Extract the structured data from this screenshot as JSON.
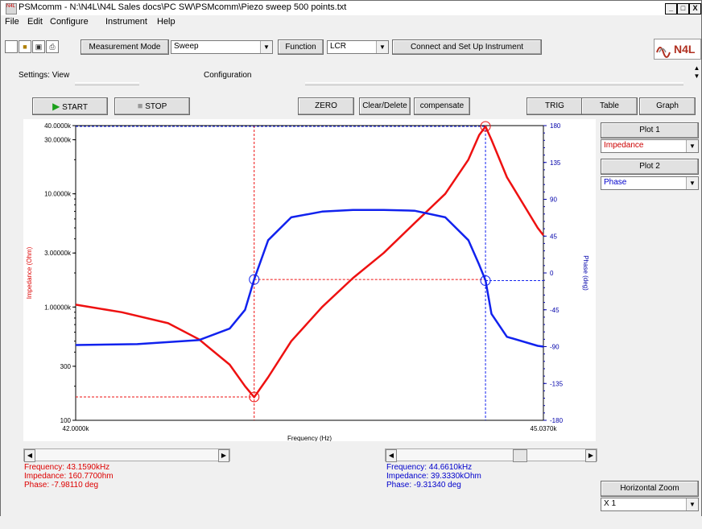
{
  "window": {
    "title": "PSMcomm - N:\\N4L\\N4L Sales docs\\PC SW\\PSMcomm\\Piezo sweep 500 points.txt",
    "icon_text": "N4L",
    "minimize": "_",
    "maximize": "□",
    "close": "X"
  },
  "menu": {
    "file": "File",
    "edit": "Edit",
    "configure": "Configure",
    "instrument": "Instrument",
    "help": "Help"
  },
  "toolbar": {
    "measurement_mode_label": "Measurement Mode",
    "measurement_mode_value": "Sweep",
    "function_label": "Function",
    "function_value": "LCR",
    "connect_label": "Connect and Set Up Instrument",
    "logo_text": "N4L"
  },
  "settings": {
    "view_label": "Settings: View",
    "configuration_label": "Configuration"
  },
  "actions": {
    "start": "START",
    "stop": "STOP",
    "zero": "ZERO",
    "clear": "Clear/Delete",
    "compensate": "compensate",
    "trig": "TRIG",
    "table": "Table",
    "graph": "Graph"
  },
  "side_panel": {
    "plot1_label": "Plot 1",
    "plot1_value": "Impedance",
    "plot2_label": "Plot 2",
    "plot2_value": "Phase",
    "zoom_label": "Horizontal Zoom",
    "zoom_value": "X 1"
  },
  "cursor_left": {
    "frequency": "Frequency: 43.1590kHz",
    "impedance": "Impedance: 160.7700hm",
    "phase": "Phase: -7.98110 deg"
  },
  "cursor_right": {
    "frequency": "Frequency: 44.6610kHz",
    "impedance": "Impedance: 39.3330kOhm",
    "phase": "Phase: -9.31340 deg"
  },
  "chart_data": {
    "type": "line",
    "xlabel": "Frequency (Hz)",
    "ylabel_left": "Impedance (Ohm)",
    "ylabel_right": "Phase (deg)",
    "x_tick_labels": [
      "42.0000k",
      "45.0370k"
    ],
    "xlim": [
      42000,
      45037
    ],
    "ylim_left": [
      100,
      40000
    ],
    "yscale_left": "log",
    "ylim_right": [
      -180,
      180
    ],
    "left_tick_labels": [
      {
        "v": 40000,
        "t": "40.0000k"
      },
      {
        "v": 30000,
        "t": "30.0000k"
      },
      {
        "v": 10000,
        "t": "10.0000k"
      },
      {
        "v": 3000,
        "t": "3.00000k"
      },
      {
        "v": 1000,
        "t": "1.00000k"
      },
      {
        "v": 300,
        "t": "300"
      },
      {
        "v": 100,
        "t": "100"
      }
    ],
    "right_tick_labels": [
      180,
      135,
      90,
      45,
      0,
      -45,
      -90,
      -135,
      -180
    ],
    "grid": false,
    "series": [
      {
        "name": "Impedance",
        "axis": "left",
        "color": "#ee1111",
        "x": [
          42000,
          42300,
          42600,
          42800,
          43000,
          43100,
          43159,
          43250,
          43400,
          43600,
          43800,
          44000,
          44200,
          44400,
          44550,
          44620,
          44661,
          44700,
          44800,
          45000,
          45037
        ],
        "y": [
          1050,
          900,
          720,
          520,
          310,
          200,
          160,
          240,
          500,
          1000,
          1800,
          3000,
          5500,
          10000,
          20000,
          33000,
          39300,
          30000,
          14000,
          5000,
          4300
        ]
      },
      {
        "name": "Phase",
        "axis": "right",
        "color": "#1122ee",
        "x": [
          42000,
          42400,
          42800,
          43000,
          43100,
          43159,
          43250,
          43400,
          43600,
          43800,
          44000,
          44200,
          44400,
          44550,
          44620,
          44661,
          44700,
          44800,
          45000,
          45037
        ],
        "y": [
          -88,
          -87,
          -82,
          -68,
          -45,
          -8,
          40,
          68,
          75,
          77,
          77,
          76,
          68,
          40,
          10,
          -9,
          -50,
          -78,
          -89,
          -90
        ]
      }
    ],
    "cursors": [
      {
        "x": 43159,
        "impedance": 160.77,
        "phase": -7.9811,
        "color": "#ee1111"
      },
      {
        "x": 44661,
        "impedance": 39333,
        "phase": -9.3134,
        "color": "#1122ee"
      }
    ]
  }
}
